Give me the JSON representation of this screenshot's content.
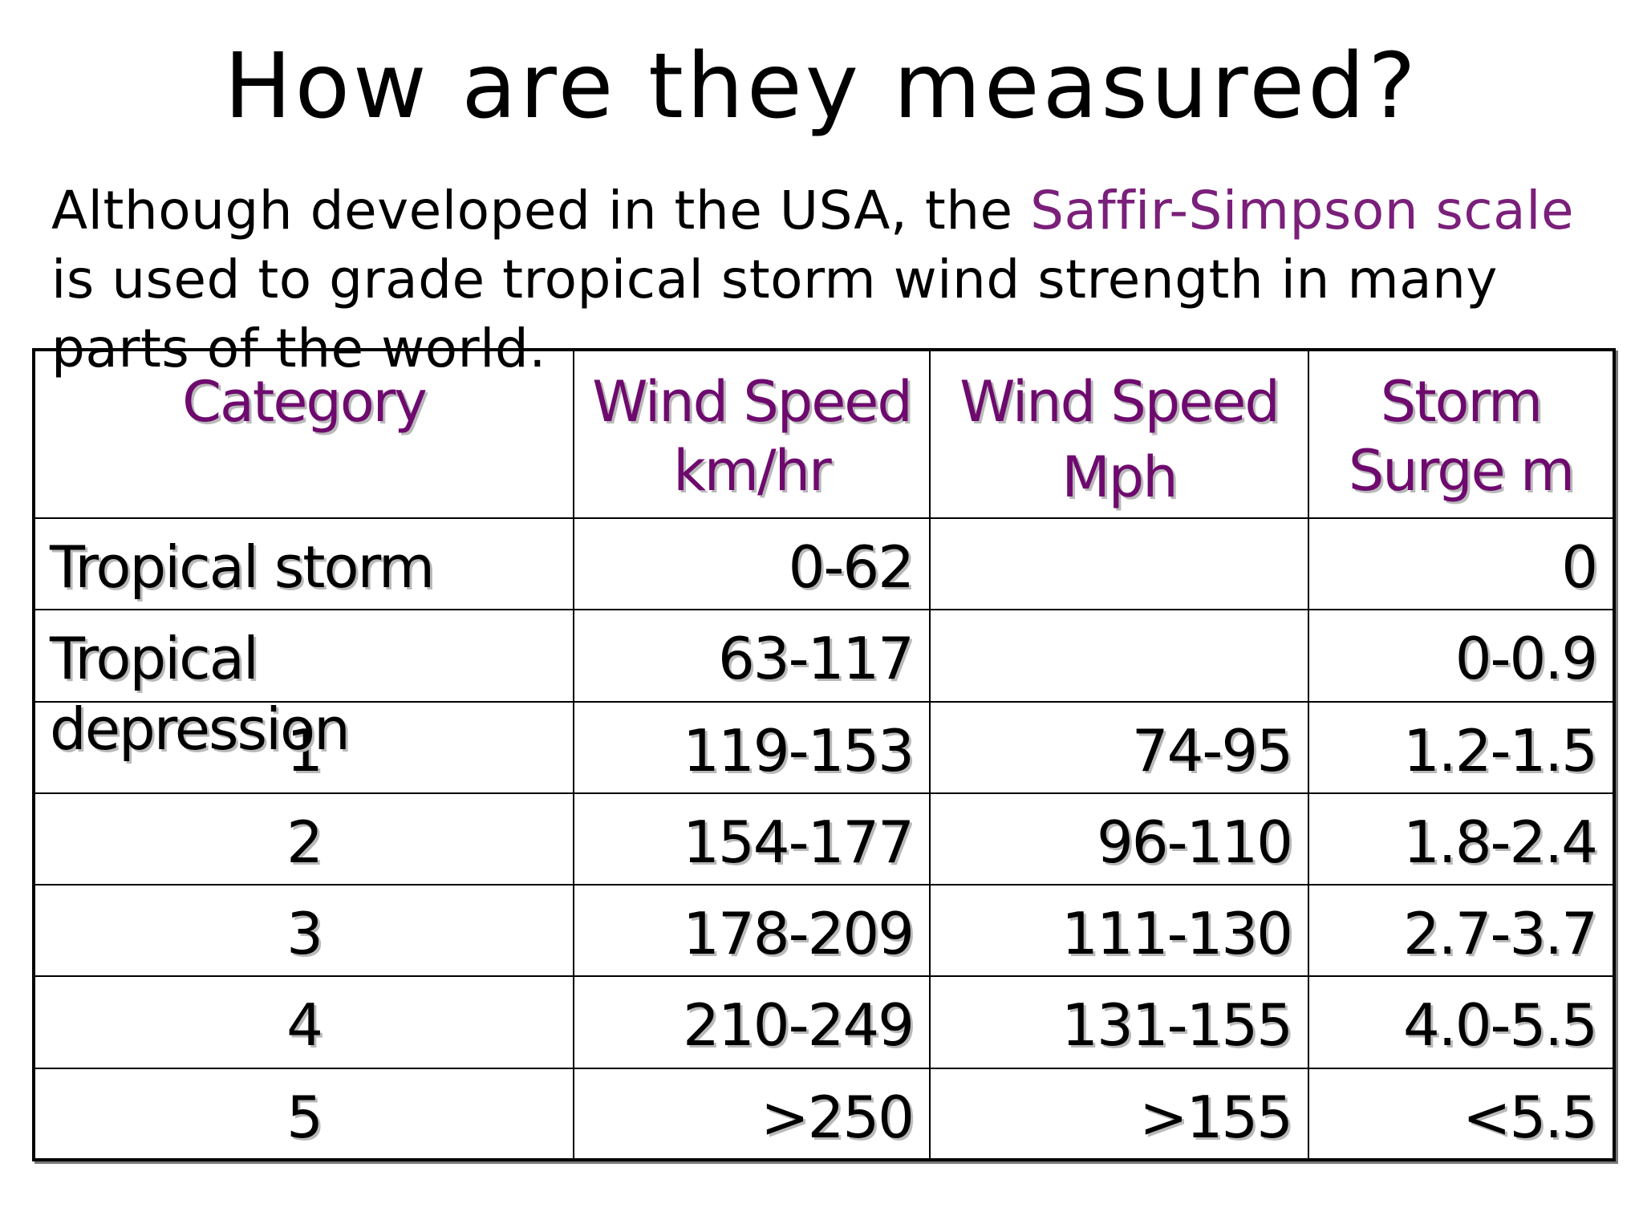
{
  "slide": {
    "title": "How are they measured?",
    "intro_before": "Although developed in the USA, the ",
    "intro_highlight": "Saffir-Simpson scale",
    "intro_after": " is used to grade tropical storm wind strength in many parts of the world."
  },
  "table": {
    "headers": {
      "category": "Category",
      "wind_kmh_line1": "Wind Speed",
      "wind_kmh_line2": "km/hr",
      "wind_mph_line1": "Wind Speed",
      "wind_mph_line2": "Mph",
      "surge_line1": "Storm",
      "surge_line2": "Surge m"
    },
    "rows": [
      {
        "category": "Tropical storm",
        "kmh": "0-62",
        "mph": "",
        "surge": "0"
      },
      {
        "category": "Tropical depression",
        "kmh": "63-117",
        "mph": "",
        "surge": "0-0.9"
      },
      {
        "category": "1",
        "kmh": "119-153",
        "mph": "74-95",
        "surge": "1.2-1.5"
      },
      {
        "category": "2",
        "kmh": "154-177",
        "mph": "96-110",
        "surge": "1.8-2.4"
      },
      {
        "category": "3",
        "kmh": "178-209",
        "mph": "111-130",
        "surge": "2.7-3.7"
      },
      {
        "category": "4",
        "kmh": "210-249",
        "mph": "131-155",
        "surge": "4.0-5.5"
      },
      {
        "category": "5",
        "kmh": ">250",
        "mph": ">155",
        "surge": "<5.5"
      }
    ]
  },
  "colors": {
    "highlight": "#7a1f7a",
    "header_text": "#6e0a6e"
  }
}
